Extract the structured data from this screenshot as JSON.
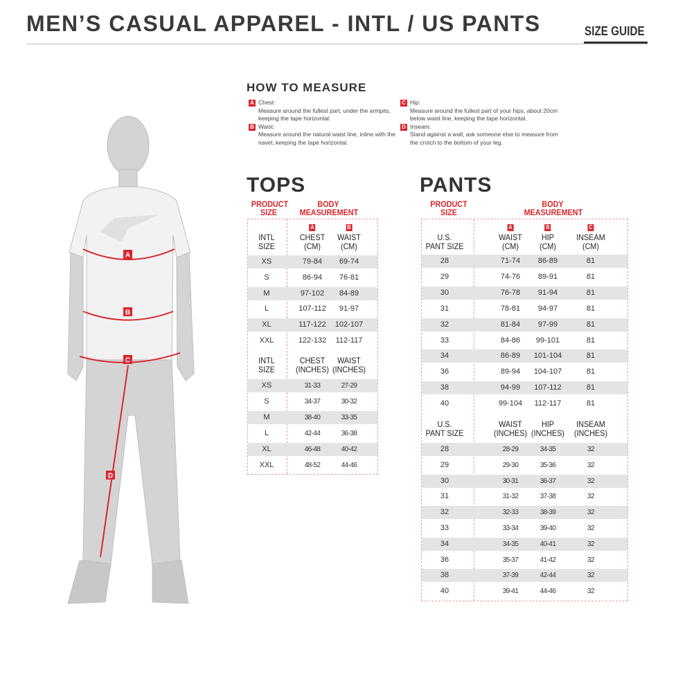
{
  "header": {
    "title": "MEN’S CASUAL APPAREL - INTL / US PANTS",
    "size_guide": "SIZE GUIDE"
  },
  "colors": {
    "accent": "#d9262c",
    "text": "#333333",
    "row_shade": "#e4e4e4"
  },
  "how_to_measure": {
    "title": "HOW TO MEASURE",
    "items": [
      {
        "letter": "A",
        "label": "Chest:",
        "text": "Measure around the fullest part, under the armpits, keeping the tape horizontal."
      },
      {
        "letter": "B",
        "label": "Waist:",
        "text": "Measure around the natural waist line, inline with the navel, keeping the tape horizontal."
      },
      {
        "letter": "C",
        "label": "Hip:",
        "text": "Measure around the fullest part of your hips, about 20cm below waist line, keeping the tape horizontal."
      },
      {
        "letter": "D",
        "label": "Inseam:",
        "text": "Stand against a wall, ask someone else to measure from the crotch to the bottom of your leg."
      }
    ]
  },
  "figure": {
    "markers": [
      "A",
      "B",
      "C",
      "D"
    ]
  },
  "tops": {
    "title": "TOPS",
    "product_size": "PRODUCT SIZE",
    "body_measurement": "BODY MEASUREMENT",
    "cm": {
      "headers": [
        {
          "letter": "",
          "label": "INTL\nSIZE"
        },
        {
          "letter": "A",
          "label": "CHEST\n(CM)"
        },
        {
          "letter": "B",
          "label": "WAIST\n(CM)"
        }
      ],
      "rows": [
        [
          "XS",
          "79-84",
          "69-74"
        ],
        [
          "S",
          "86-94",
          "76-81"
        ],
        [
          "M",
          "97-102",
          "84-89"
        ],
        [
          "L",
          "107-112",
          "91-97"
        ],
        [
          "XL",
          "117-122",
          "102-107"
        ],
        [
          "XXL",
          "122-132",
          "112-117"
        ]
      ]
    },
    "inches": {
      "headers": [
        {
          "letter": "",
          "label": "INTL\nSIZE"
        },
        {
          "letter": "",
          "label": "CHEST\n(INCHES)"
        },
        {
          "letter": "",
          "label": "WAIST\n(INCHES)"
        }
      ],
      "rows": [
        [
          "XS",
          "31-33",
          "27-29"
        ],
        [
          "S",
          "34-37",
          "30-32"
        ],
        [
          "M",
          "38-40",
          "33-35"
        ],
        [
          "L",
          "42-44",
          "36-38"
        ],
        [
          "XL",
          "46-48",
          "40-42"
        ],
        [
          "XXL",
          "48-52",
          "44-46"
        ]
      ]
    }
  },
  "pants": {
    "title": "PANTS",
    "product_size": "PRODUCT SIZE",
    "body_measurement": "BODY MEASUREMENT",
    "cm": {
      "headers": [
        {
          "letter": "",
          "label": "U.S.\nPANT SIZE"
        },
        {
          "letter": "A",
          "label": "WAIST\n(CM)"
        },
        {
          "letter": "B",
          "label": "HIP\n(CM)"
        },
        {
          "letter": "C",
          "label": "INSEAM\n(CM)"
        }
      ],
      "rows": [
        [
          "28",
          "71-74",
          "86-89",
          "81"
        ],
        [
          "29",
          "74-76",
          "89-91",
          "81"
        ],
        [
          "30",
          "76-78",
          "91-94",
          "81"
        ],
        [
          "31",
          "78-81",
          "94-97",
          "81"
        ],
        [
          "32",
          "81-84",
          "97-99",
          "81"
        ],
        [
          "33",
          "84-86",
          "99-101",
          "81"
        ],
        [
          "34",
          "86-89",
          "101-104",
          "81"
        ],
        [
          "36",
          "89-94",
          "104-107",
          "81"
        ],
        [
          "38",
          "94-99",
          "107-112",
          "81"
        ],
        [
          "40",
          "99-104",
          "112-117",
          "81"
        ]
      ]
    },
    "inches": {
      "headers": [
        {
          "letter": "",
          "label": "U.S.\nPANT SIZE"
        },
        {
          "letter": "",
          "label": "WAIST\n(INCHES)"
        },
        {
          "letter": "",
          "label": "HIP\n(INCHES)"
        },
        {
          "letter": "",
          "label": "INSEAM\n(INCHES)"
        }
      ],
      "rows": [
        [
          "28",
          "28-29",
          "34-35",
          "32"
        ],
        [
          "29",
          "29-30",
          "35-36",
          "32"
        ],
        [
          "30",
          "30-31",
          "36-37",
          "32"
        ],
        [
          "31",
          "31-32",
          "37-38",
          "32"
        ],
        [
          "32",
          "32-33",
          "38-39",
          "32"
        ],
        [
          "33",
          "33-34",
          "39-40",
          "32"
        ],
        [
          "34",
          "34-35",
          "40-41",
          "32"
        ],
        [
          "36",
          "35-37",
          "41-42",
          "32"
        ],
        [
          "38",
          "37-39",
          "42-44",
          "32"
        ],
        [
          "40",
          "39-41",
          "44-46",
          "32"
        ]
      ]
    }
  }
}
